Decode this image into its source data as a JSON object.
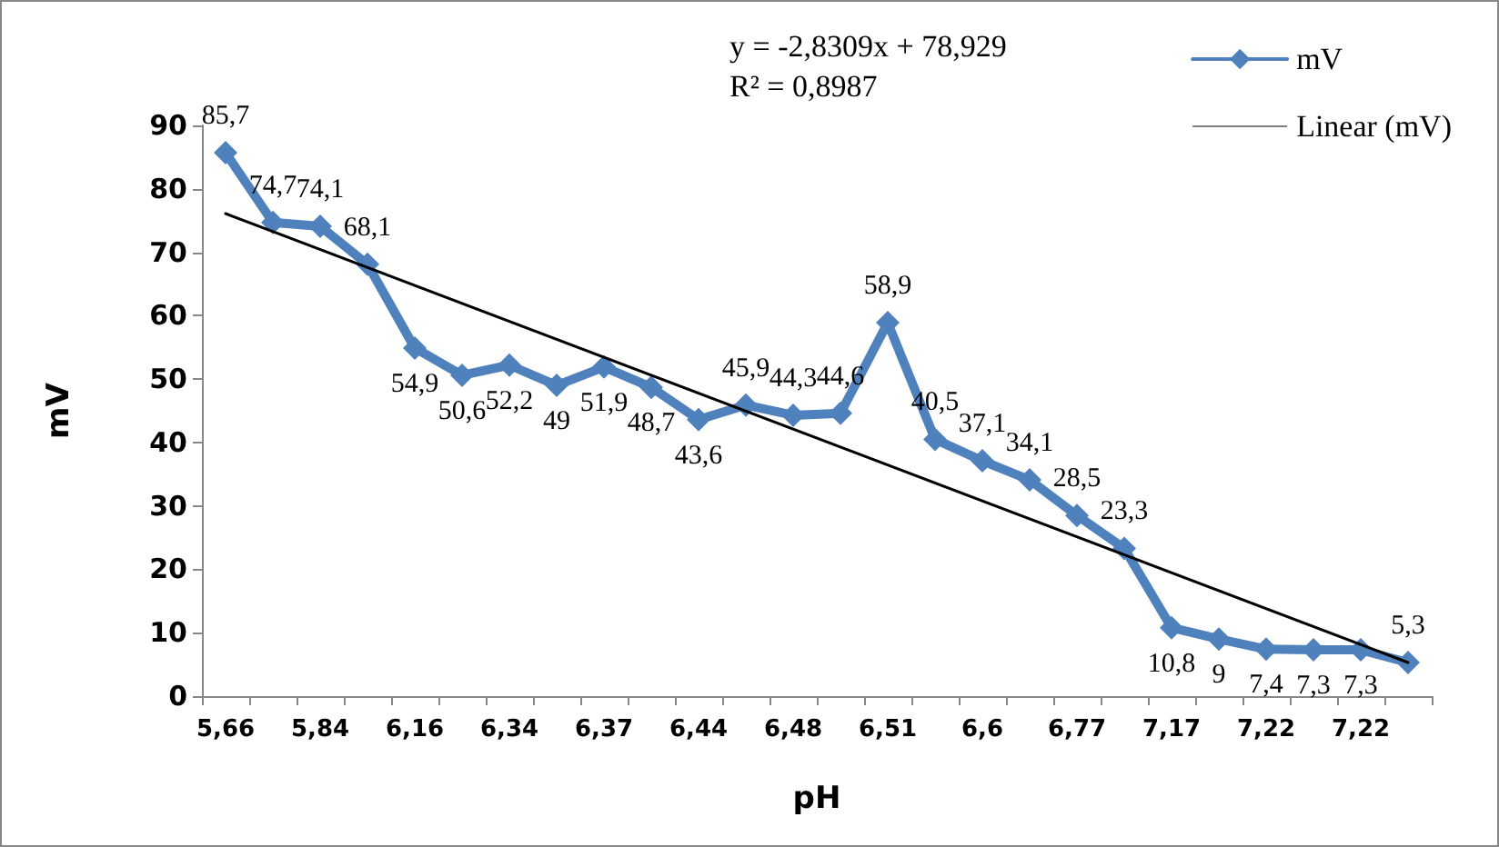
{
  "chart_data": {
    "type": "line",
    "xlabel": "pH",
    "ylabel": "mV",
    "categories": [
      "5,66",
      null,
      "5,84",
      null,
      "6,16",
      null,
      "6,34",
      null,
      "6,37",
      null,
      "6,44",
      null,
      "6,48",
      null,
      "6,51",
      null,
      "6,6",
      null,
      "6,77",
      null,
      "7,17",
      null,
      "7,22",
      null,
      "7,22",
      null
    ],
    "series": [
      {
        "name": "mV",
        "color": "#4f81bd",
        "marker": "diamond",
        "values": [
          85.7,
          74.7,
          74.1,
          68.1,
          54.9,
          50.6,
          52.2,
          49,
          51.9,
          48.7,
          43.6,
          45.9,
          44.3,
          44.6,
          58.9,
          40.5,
          37.1,
          34.1,
          28.5,
          23.3,
          10.8,
          9,
          7.4,
          7.3,
          7.3,
          5.3
        ],
        "value_labels": [
          "85,7",
          "74,7",
          "74,1",
          "68,1",
          "54,9",
          "50,6",
          "52,2",
          "49",
          "51,9",
          "48,7",
          "43,6",
          "45,9",
          "44,3",
          "44,6",
          "58,9",
          "40,5",
          "37,1",
          "34,1",
          "28,5",
          "23,3",
          "10,8",
          "9",
          "7,4",
          "7,3",
          "7,3",
          "5,3"
        ]
      },
      {
        "name": "Linear (mV)",
        "color": "#000000",
        "marker": "none",
        "values": [
          76.1,
          null,
          null,
          null,
          null,
          null,
          null,
          null,
          null,
          null,
          null,
          null,
          null,
          null,
          null,
          null,
          null,
          null,
          null,
          null,
          null,
          null,
          null,
          null,
          null,
          5.3
        ]
      }
    ],
    "annotations": [
      "y = -2,8309x + 78,929",
      "R² = 0,8987"
    ],
    "ylim": [
      0,
      90
    ],
    "yticks": [
      0,
      10,
      20,
      30,
      40,
      50,
      60,
      70,
      80,
      90
    ],
    "grid": false,
    "legend": "top right",
    "line_style": "solid"
  }
}
